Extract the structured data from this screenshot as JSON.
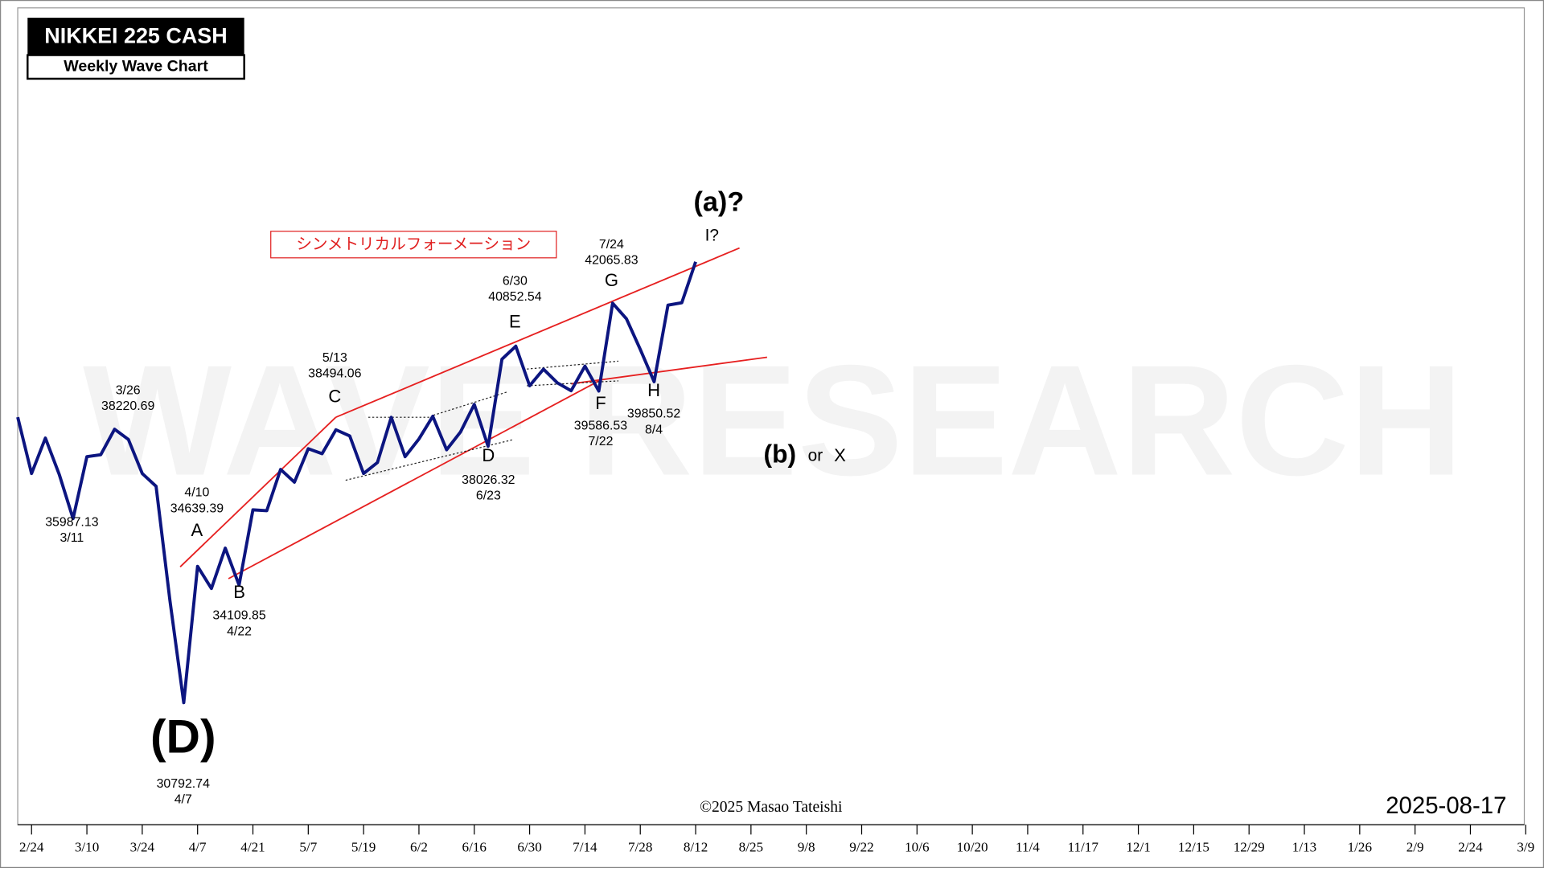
{
  "chart_data": {
    "type": "line",
    "title": "NIKKEI 225 CASH",
    "subtitle": "Weekly Wave Chart",
    "watermark": "WAVE RESEARCH",
    "formation_label": "シンメトリカルフォーメーション",
    "copyright": "©2025 Masao Tateishi",
    "date": "2025-08-17",
    "categories": [
      null,
      "2/24",
      null,
      null,
      null,
      "3/10",
      null,
      null,
      null,
      "3/24",
      null,
      null,
      null,
      "4/7",
      null,
      null,
      null,
      "4/21",
      null,
      null,
      null,
      "5/7",
      null,
      null,
      null,
      "5/19",
      null,
      null,
      null,
      "6/2",
      null,
      null,
      null,
      "6/16",
      null,
      null,
      null,
      "6/30",
      null,
      null,
      null,
      "7/14",
      null,
      null,
      null,
      "7/28",
      null,
      null,
      null,
      "8/12",
      null,
      null,
      null,
      "8/25",
      null,
      null,
      null,
      "9/8",
      null,
      null,
      null,
      "9/22",
      null,
      null,
      null,
      "10/6",
      null,
      null,
      null,
      "10/20",
      null,
      null,
      null,
      "11/4",
      null,
      null,
      null,
      "11/17",
      null,
      null,
      null,
      "12/1",
      null,
      null,
      null,
      "12/15",
      null,
      null,
      null,
      "12/29",
      null,
      null,
      null,
      "1/13",
      null,
      null,
      null,
      "1/26",
      null,
      null,
      null,
      "2/9",
      null,
      null,
      null,
      "2/24",
      null,
      null,
      null,
      "3/9"
    ],
    "series": [
      {
        "name": "NIKKEI 225",
        "color": "#0c1580",
        "values": [
          38850,
          37260,
          38260,
          37235,
          35987.13,
          37735,
          37790,
          38510,
          38220.69,
          37260,
          36900,
          33680,
          30792.74,
          34639.39,
          34015,
          35155,
          34109.85,
          36235,
          36210,
          37375,
          37015,
          37960,
          37820,
          38494.06,
          38320,
          37260,
          37570,
          38845,
          37735,
          38235,
          38875,
          37930,
          38430,
          39210,
          38026.32,
          40485,
          40852.54,
          39735,
          40205,
          39820,
          39595,
          40290,
          39586.53,
          42065.83,
          41625,
          40760,
          39850.52,
          42010,
          42080,
          43235,
          null,
          null,
          null,
          null,
          null,
          null,
          null,
          null,
          null,
          null,
          null,
          null,
          null,
          null,
          null,
          null,
          null,
          null,
          null,
          null,
          null,
          null,
          null,
          null,
          null,
          null,
          null,
          null,
          null,
          null,
          null,
          null,
          null,
          null,
          null,
          null,
          null,
          null,
          null,
          null,
          null,
          null,
          null,
          null,
          null,
          null,
          null,
          null,
          null,
          null,
          null,
          null,
          null,
          null,
          null,
          null,
          null,
          null,
          null,
          null
        ]
      }
    ],
    "ylim": [
      27350,
      50400
    ],
    "annotations": [
      "(a)?",
      "I?",
      "7/24",
      "42065.83",
      "G",
      "6/30",
      "40852.54",
      "E",
      "5/13",
      "38494.06",
      "C",
      "3/26",
      "38220.69",
      "4/10",
      "34639.39",
      "A",
      "35987.13",
      "3/11",
      "B",
      "34109.85",
      "4/22",
      "(D)",
      "30792.74",
      "4/7",
      "D",
      "38026.32",
      "6/23",
      "F",
      "39586.53",
      "7/22",
      "H",
      "39850.52",
      "8/4",
      "(b)",
      "or",
      "X"
    ]
  }
}
